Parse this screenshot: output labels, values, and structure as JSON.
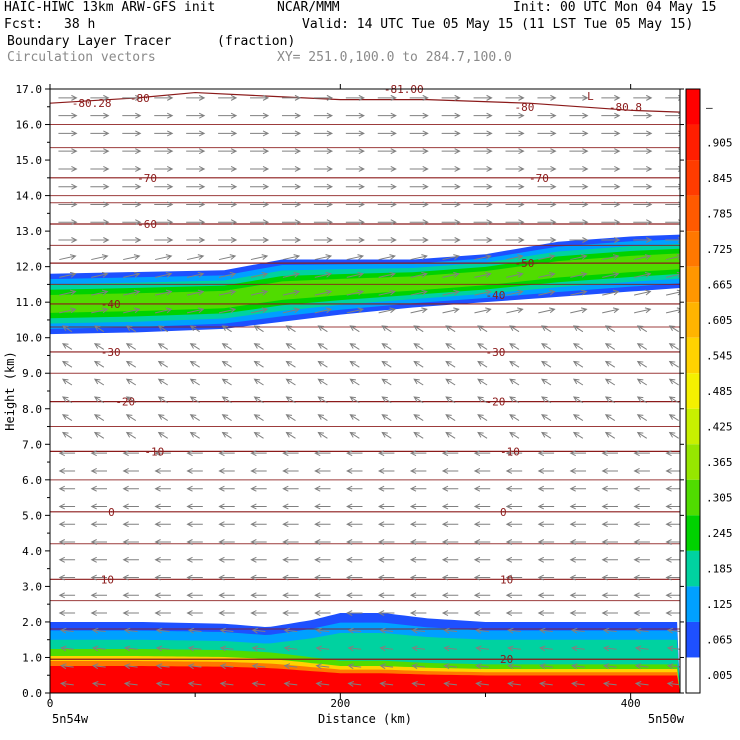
{
  "header": {
    "model_line": "HAIC-HIWC 13km ARW-GFS init",
    "org": "NCAR/MMM",
    "init": "Init: 00 UTC Mon 04 May 15",
    "fcst_label": "Fcst:",
    "fcst_value": "38 h",
    "valid": "Valid: 14 UTC Tue 05 May 15 (11 LST Tue 05 May 15)",
    "field_name": "Boundary Layer Tracer",
    "field_units": "(fraction)",
    "vector_label": "Circulation vectors",
    "xy_label": "XY= 251.0,100.0 to 284.7,100.0"
  },
  "chart_data": {
    "type": "heatmap",
    "title": "Boundary Layer Tracer (fraction)",
    "xlabel": "Distance (km)",
    "ylabel": "Height (km)",
    "xlim": [
      0,
      434
    ],
    "ylim": [
      0,
      17
    ],
    "x_ticks": [
      0,
      200,
      400
    ],
    "x_tick_labels": [
      "0",
      "200",
      "400"
    ],
    "x_endpoint_labels": [
      "5n54w",
      "5n50w"
    ],
    "y_ticks": [
      0,
      1,
      2,
      3,
      4,
      5,
      6,
      7,
      8,
      9,
      10,
      11,
      12,
      13,
      14,
      15,
      16,
      17
    ],
    "y_tick_labels": [
      "0.0",
      "1.0",
      "2.0",
      "3.0",
      "4.0",
      "5.0",
      "6.0",
      "7.0",
      "8.0",
      "9.0",
      "10.0",
      "11.0",
      "12.0",
      "13.0",
      "14.0",
      "15.0",
      "16.0",
      "17.0"
    ],
    "colorbar": {
      "labels": [
        "–",
        ".905",
        ".845",
        ".785",
        ".725",
        ".665",
        ".605",
        ".545",
        ".485",
        ".425",
        ".365",
        ".305",
        ".245",
        ".185",
        ".125",
        ".065",
        ".005"
      ],
      "colors": [
        "#ff0000",
        "#ff1e00",
        "#ff3c00",
        "#ff5a00",
        "#ff7800",
        "#ff9600",
        "#ffb400",
        "#ffd200",
        "#f5f000",
        "#c8f000",
        "#96e600",
        "#50dc00",
        "#00d200",
        "#00d2a0",
        "#00a0ff",
        "#1e50ff",
        "#ffffff"
      ]
    },
    "tracer_layers": [
      {
        "name": "upper",
        "x": [
          0,
          60,
          120,
          160,
          200,
          250,
          300,
          350,
          400,
          434
        ],
        "bottom": [
          10.1,
          10.15,
          10.25,
          10.45,
          10.65,
          10.85,
          11.0,
          11.15,
          11.3,
          11.4
        ],
        "top": [
          11.8,
          11.85,
          11.9,
          12.2,
          12.2,
          12.2,
          12.35,
          12.7,
          12.85,
          12.9
        ]
      },
      {
        "name": "lower",
        "x": [
          0,
          60,
          120,
          150,
          180,
          200,
          230,
          260,
          300,
          350,
          400,
          434
        ],
        "top": [
          2.0,
          2.0,
          1.95,
          1.85,
          2.05,
          2.25,
          2.25,
          2.1,
          2.0,
          2.0,
          2.0,
          2.0
        ]
      }
    ],
    "temperature_contours": [
      {
        "label": "-80",
        "x": [
          0,
          60,
          100,
          150,
          200,
          260,
          330,
          400,
          434
        ],
        "y": [
          16.6,
          16.75,
          16.9,
          16.8,
          16.7,
          16.7,
          16.6,
          16.4,
          16.35
        ]
      },
      {
        "label": "-70",
        "y": 14.5
      },
      {
        "label": "-60",
        "y": 13.2
      },
      {
        "label": "-50",
        "y": 12.1
      },
      {
        "label": "-40",
        "y": 10.95
      },
      {
        "label": "-30",
        "y": 9.6
      },
      {
        "label": "-20",
        "y": 8.2
      },
      {
        "label": "-10",
        "y": 6.8
      },
      {
        "label": "0",
        "y": 5.1
      },
      {
        "label": "10",
        "y": 3.2
      },
      {
        "label": "20",
        "y": 0.95
      }
    ],
    "contour_labels": [
      {
        "text": "-80.28",
        "x": 15,
        "y": 16.6
      },
      {
        "text": "-80",
        "x": 55,
        "y": 16.75
      },
      {
        "text": "-81.00",
        "x": 230,
        "y": 17.0
      },
      {
        "text": "-80",
        "x": 320,
        "y": 16.5
      },
      {
        "text": "L",
        "x": 370,
        "y": 16.8
      },
      {
        "text": "-80.8",
        "x": 385,
        "y": 16.5
      },
      {
        "text": "-70",
        "x": 60,
        "y": 14.5
      },
      {
        "text": "-70",
        "x": 330,
        "y": 14.5
      },
      {
        "text": "-60",
        "x": 60,
        "y": 13.2
      },
      {
        "text": "-50",
        "x": 320,
        "y": 12.1
      },
      {
        "text": "-40",
        "x": 35,
        "y": 10.95
      },
      {
        "text": "-40",
        "x": 300,
        "y": 11.2
      },
      {
        "text": "-30",
        "x": 35,
        "y": 9.6
      },
      {
        "text": "-30",
        "x": 300,
        "y": 9.6
      },
      {
        "text": "-20",
        "x": 45,
        "y": 8.2
      },
      {
        "text": "-20",
        "x": 300,
        "y": 8.2
      },
      {
        "text": "-10",
        "x": 65,
        "y": 6.8
      },
      {
        "text": "-10",
        "x": 310,
        "y": 6.8
      },
      {
        "text": "0",
        "x": 40,
        "y": 5.1
      },
      {
        "text": "0",
        "x": 310,
        "y": 5.1
      },
      {
        "text": "10",
        "x": 35,
        "y": 3.2
      },
      {
        "text": "10",
        "x": 310,
        "y": 3.2
      },
      {
        "text": "20",
        "x": 310,
        "y": 0.95
      }
    ],
    "wind_vectors": [
      {
        "z_min": 12.6,
        "z_max": 17,
        "u": 1.0,
        "w": 0.0
      },
      {
        "z_min": 10.4,
        "z_max": 12.6,
        "u": 0.9,
        "w": 0.05
      },
      {
        "z_min": 7.0,
        "z_max": 10.4,
        "u": -0.5,
        "w": 0.08
      },
      {
        "z_min": 2.0,
        "z_max": 7.0,
        "u": -0.85,
        "w": 0.0
      },
      {
        "z_min": 0,
        "z_max": 2.0,
        "u": -0.7,
        "w": 0.02
      }
    ],
    "colors": {
      "contour": "#8b1a1a",
      "vector": "#808080",
      "axis": "#000000"
    }
  }
}
